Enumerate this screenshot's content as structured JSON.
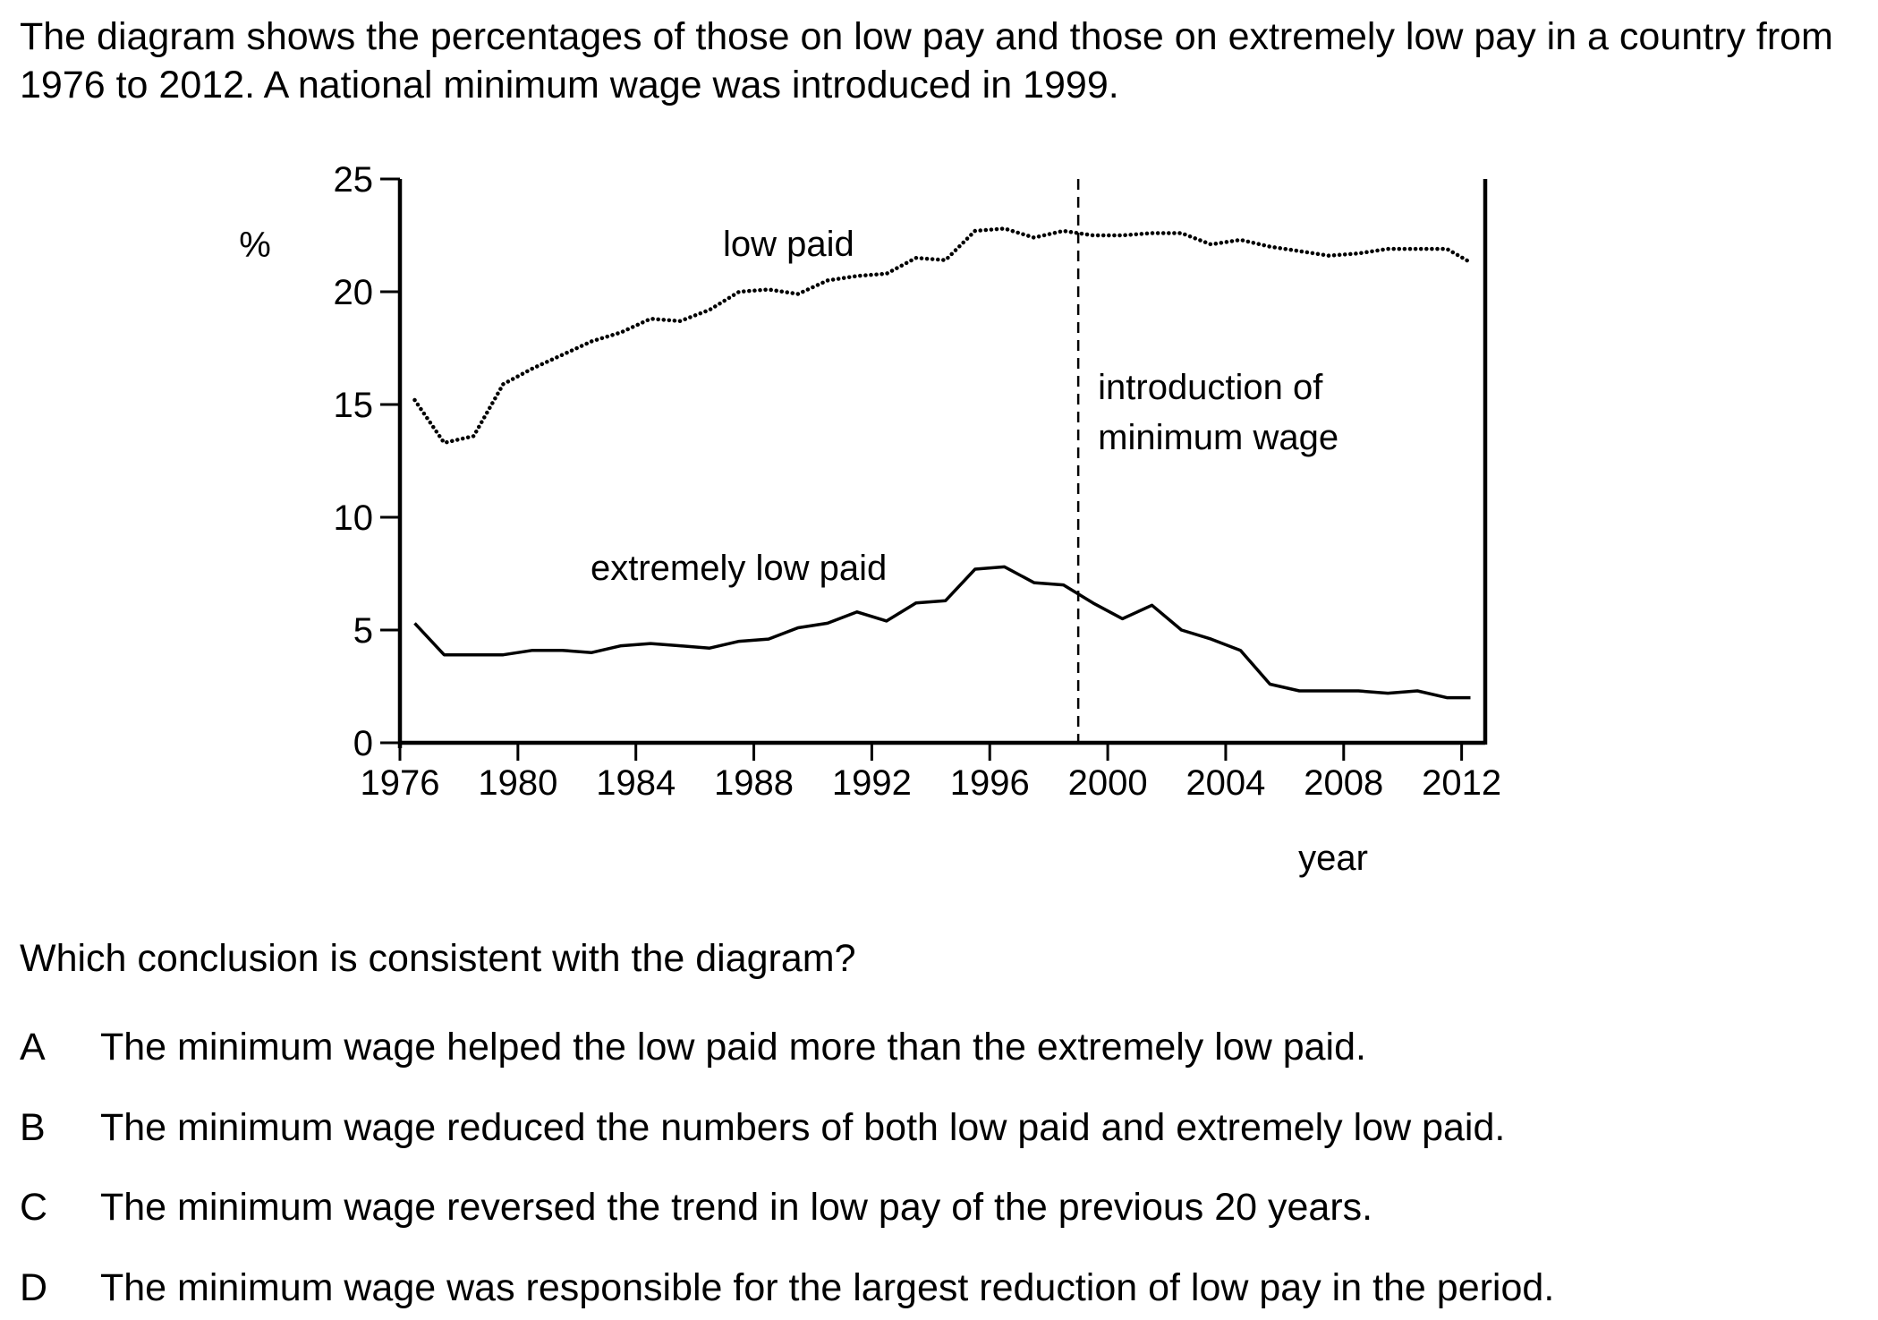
{
  "intro_text": "The diagram shows the percentages of those on low pay and those on extremely low pay in a country from 1976 to 2012. A national minimum wage was introduced in 1999.",
  "question": "Which conclusion is consistent with the diagram?",
  "options": [
    {
      "letter": "A",
      "text": "The minimum wage helped the low paid more than the extremely low paid."
    },
    {
      "letter": "B",
      "text": "The minimum wage reduced the numbers of both low paid and extremely low paid."
    },
    {
      "letter": "C",
      "text": "The minimum wage reversed the trend in low pay of the previous 20 years."
    },
    {
      "letter": "D",
      "text": "The minimum wage was responsible for the largest reduction of low pay in the period."
    }
  ],
  "chart_data": {
    "type": "line",
    "title": "",
    "xlabel": "year",
    "ylabel": "%",
    "xlim": [
      1976,
      2012.8
    ],
    "ylim": [
      0,
      25
    ],
    "x_ticks": [
      1976,
      1980,
      1984,
      1988,
      1992,
      1996,
      2000,
      2004,
      2008,
      2012
    ],
    "y_ticks": [
      0,
      5,
      10,
      15,
      20,
      25
    ],
    "grid": false,
    "series": [
      {
        "name": "low paid",
        "style": "dotted",
        "x": [
          1976.5,
          1977.5,
          1978.5,
          1979.5,
          1980.5,
          1981.5,
          1982.5,
          1983.5,
          1984.5,
          1985.5,
          1986.5,
          1987.5,
          1988.5,
          1989.5,
          1990.5,
          1991.5,
          1992.5,
          1993.5,
          1994.5,
          1995.5,
          1996.5,
          1997.5,
          1998.5,
          1999.5,
          2000.5,
          2001.5,
          2002.5,
          2003.5,
          2004.5,
          2005.5,
          2006.5,
          2007.5,
          2008.5,
          2009.5,
          2010.5,
          2011.5,
          2012.3
        ],
        "values": [
          15.2,
          13.3,
          13.6,
          15.9,
          16.6,
          17.2,
          17.8,
          18.2,
          18.8,
          18.7,
          19.2,
          20.0,
          20.1,
          19.9,
          20.5,
          20.7,
          20.8,
          21.5,
          21.4,
          22.7,
          22.8,
          22.4,
          22.7,
          22.5,
          22.5,
          22.6,
          22.6,
          22.1,
          22.3,
          22.0,
          21.8,
          21.6,
          21.7,
          21.9,
          21.9,
          21.9,
          21.3
        ]
      },
      {
        "name": "extremely low paid",
        "style": "solid",
        "x": [
          1976.5,
          1977.5,
          1978.5,
          1979.5,
          1980.5,
          1981.5,
          1982.5,
          1983.5,
          1984.5,
          1985.5,
          1986.5,
          1987.5,
          1988.5,
          1989.5,
          1990.5,
          1991.5,
          1992.5,
          1993.5,
          1994.5,
          1995.5,
          1996.5,
          1997.5,
          1998.5,
          1999.5,
          2000.5,
          2001.5,
          2002.5,
          2003.5,
          2004.5,
          2005.5,
          2006.5,
          2007.5,
          2008.5,
          2009.5,
          2010.5,
          2011.5,
          2012.3
        ],
        "values": [
          5.3,
          3.9,
          3.9,
          3.9,
          4.1,
          4.1,
          4.0,
          4.3,
          4.4,
          4.3,
          4.2,
          4.5,
          4.6,
          5.1,
          5.3,
          5.8,
          5.4,
          6.2,
          6.3,
          7.7,
          7.8,
          7.1,
          7.0,
          6.2,
          5.5,
          6.1,
          5.0,
          4.6,
          4.1,
          2.6,
          2.3,
          2.3,
          2.3,
          2.2,
          2.3,
          2.0,
          2.0
        ]
      }
    ],
    "annotations": [
      {
        "text_lines": [
          "low paid"
        ],
        "near_series": "low paid"
      },
      {
        "text_lines": [
          "extremely low paid"
        ],
        "near_series": "extremely low paid"
      },
      {
        "text_lines": [
          "introduction of",
          "minimum wage"
        ],
        "marker": "dashed vertical line",
        "x": 1999
      }
    ]
  }
}
